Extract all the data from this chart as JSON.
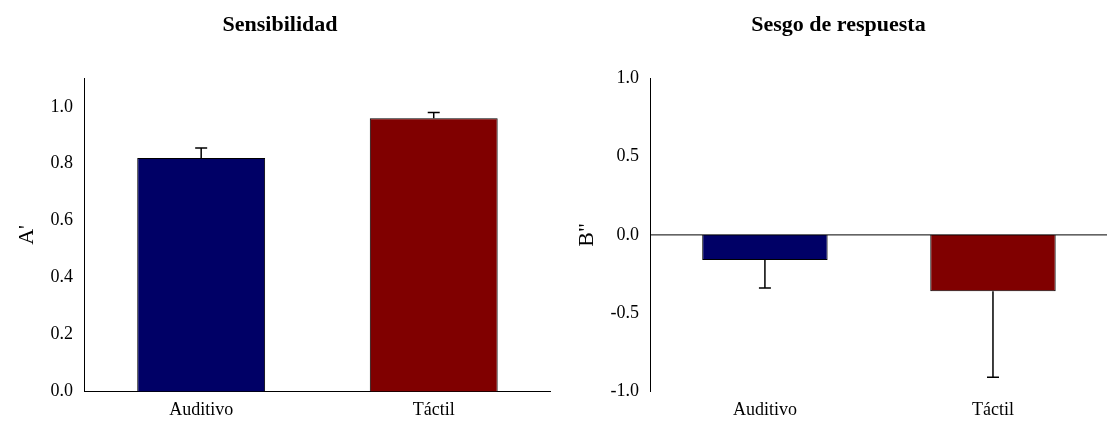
{
  "chart_data": [
    {
      "type": "bar",
      "title": "Sensibilidad",
      "ylabel": "A'",
      "categories": [
        "Auditivo",
        "Táctil"
      ],
      "values": [
        0.82,
        0.96
      ],
      "colors": [
        "#000066",
        "#800000"
      ],
      "errors": [
        [
          0.82,
          0.855
        ],
        [
          0.96,
          0.98
        ]
      ],
      "ylim": [
        0,
        1.1
      ],
      "yticks": [
        {
          "value": 0,
          "label": "0.0"
        },
        {
          "value": 0.2,
          "label": "0.2"
        },
        {
          "value": 0.4,
          "label": "0.4"
        },
        {
          "value": 0.6,
          "label": "0.6"
        },
        {
          "value": 0.8,
          "label": "0.8"
        },
        {
          "value": 1,
          "label": "1.0"
        }
      ]
    },
    {
      "type": "bar",
      "title": "Sesgo de respuesta",
      "ylabel": "B\"",
      "categories": [
        "Auditivo",
        "Táctil"
      ],
      "values": [
        -0.16,
        -0.36
      ],
      "colors": [
        "#000066",
        "#800000"
      ],
      "errors": [
        [
          -0.34,
          -0.16
        ],
        [
          -0.91,
          -0.36
        ]
      ],
      "ylim": [
        -1,
        1
      ],
      "yticks": [
        {
          "value": -1,
          "label": "-1.0"
        },
        {
          "value": -0.5,
          "label": "-0.5"
        },
        {
          "value": 0,
          "label": "0.0"
        },
        {
          "value": 0.5,
          "label": "0.5"
        },
        {
          "value": 1,
          "label": "1.0"
        }
      ],
      "ref_lines": [
        {
          "axis": "y",
          "value": 0
        }
      ]
    }
  ]
}
